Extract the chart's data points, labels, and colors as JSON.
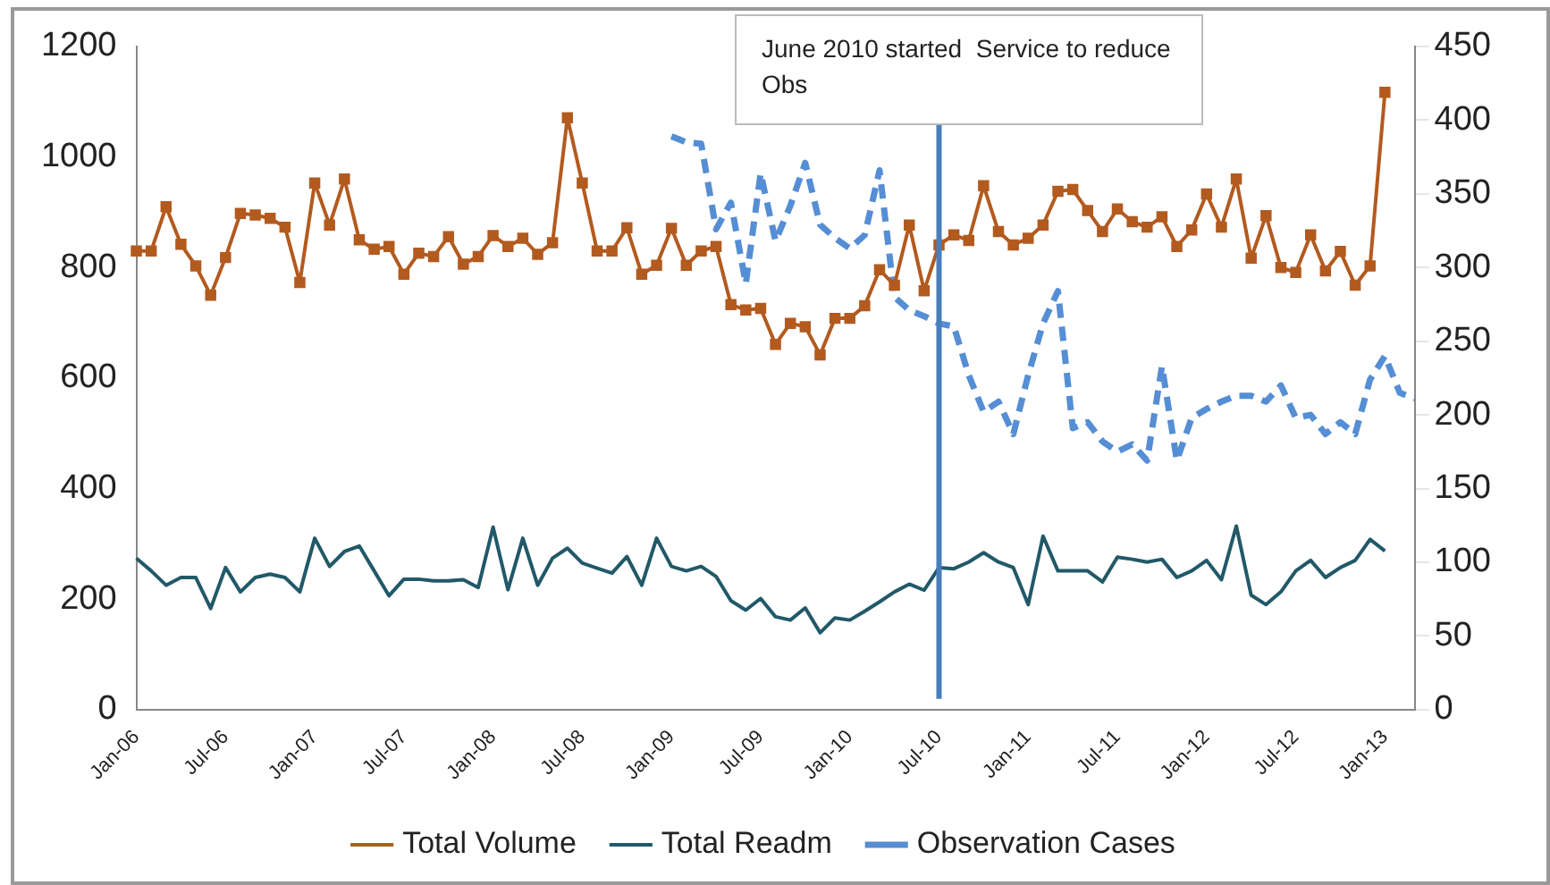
{
  "chart_data": {
    "type": "line",
    "categories": [
      "Jan-06",
      null,
      null,
      null,
      null,
      null,
      "Jul-06",
      null,
      null,
      null,
      null,
      null,
      "Jan-07",
      null,
      null,
      null,
      null,
      null,
      "Jul-07",
      null,
      null,
      null,
      null,
      null,
      "Jan-08",
      null,
      null,
      null,
      null,
      null,
      "Jul-08",
      null,
      null,
      null,
      null,
      null,
      "Jan-09",
      null,
      null,
      null,
      null,
      null,
      "Jul-09",
      null,
      null,
      null,
      null,
      null,
      "Jan-10",
      null,
      null,
      null,
      null,
      null,
      "Jul-10",
      null,
      null,
      null,
      null,
      null,
      "Jan-11",
      null,
      null,
      null,
      null,
      null,
      "Jul-11",
      null,
      null,
      null,
      null,
      null,
      "Jan-12",
      null,
      null,
      null,
      null,
      null,
      "Jul-12",
      null,
      null,
      null,
      null,
      null,
      "Jan-13",
      null,
      null
    ],
    "series": [
      {
        "name": "Total Volume",
        "color": "#b35a1f",
        "marker": "square",
        "values": [
          830,
          830,
          910,
          842,
          803,
          750,
          818,
          898,
          895,
          889,
          873,
          773,
          953,
          877,
          960,
          850,
          833,
          838,
          788,
          826,
          820,
          856,
          806,
          820,
          858,
          838,
          853,
          824,
          845,
          1071,
          953,
          830,
          830,
          872,
          788,
          804,
          871,
          804,
          830,
          838,
          733,
          723,
          726,
          661,
          699,
          693,
          642,
          708,
          708,
          731,
          796,
          768,
          877,
          758,
          841,
          859,
          849,
          948,
          865,
          841,
          853,
          877,
          938,
          941,
          903,
          865,
          906,
          883,
          873,
          892,
          838,
          868,
          933,
          873,
          960,
          817,
          894,
          800,
          791,
          859,
          794,
          829,
          768,
          803,
          1117,
          null,
          null
        ]
      },
      {
        "name": "Total Readm",
        "color": "#215968",
        "marker": "none",
        "values": [
          274,
          251,
          225,
          239,
          239,
          183,
          257,
          213,
          239,
          245,
          239,
          213,
          310,
          259,
          286,
          296,
          251,
          206,
          236,
          236,
          233,
          233,
          235,
          221,
          330,
          217,
          310,
          225,
          274,
          292,
          265,
          256,
          247,
          277,
          225,
          310,
          259,
          251,
          259,
          241,
          197,
          180,
          201,
          168,
          162,
          184,
          139,
          166,
          162,
          178,
          195,
          213,
          227,
          216,
          257,
          255,
          267,
          284,
          267,
          257,
          190,
          314,
          251,
          251,
          251,
          231,
          276,
          272,
          267,
          272,
          239,
          251,
          270,
          235,
          332,
          207,
          190,
          213,
          251,
          270,
          239,
          257,
          270,
          308,
          287,
          null,
          null
        ]
      },
      {
        "name": "Observation Cases",
        "color": "#558ed5",
        "marker": "none",
        "line_style": "dashed",
        "axis": "y2",
        "values": [
          null,
          null,
          null,
          null,
          null,
          null,
          null,
          null,
          null,
          null,
          null,
          null,
          null,
          null,
          null,
          null,
          null,
          null,
          null,
          null,
          null,
          null,
          null,
          null,
          null,
          null,
          null,
          null,
          null,
          null,
          null,
          null,
          null,
          null,
          null,
          null,
          389,
          385,
          384,
          326,
          344,
          289,
          364,
          318,
          342,
          371,
          329,
          320,
          313,
          322,
          366,
          280,
          271,
          267,
          262,
          260,
          227,
          202,
          209,
          187,
          227,
          262,
          284,
          191,
          195,
          182,
          175,
          180,
          169,
          233,
          169,
          198,
          204,
          209,
          213,
          213,
          209,
          220,
          198,
          200,
          187,
          195,
          187,
          224,
          240,
          215,
          211
        ]
      }
    ],
    "ylim": [
      0,
      1200
    ],
    "yticks": [
      0,
      200,
      400,
      600,
      800,
      1000,
      1200
    ],
    "y2lim": [
      0,
      450
    ],
    "y2ticks": [
      0,
      50,
      100,
      150,
      200,
      250,
      300,
      350,
      400,
      450
    ],
    "ref_lines": [
      {
        "axis": "x",
        "value": "Jul-10",
        "color": "#4a7ebb"
      }
    ],
    "annotations": [
      "June 2010 started  Service to reduce Obs"
    ],
    "grid": false,
    "legend": "bottom"
  }
}
